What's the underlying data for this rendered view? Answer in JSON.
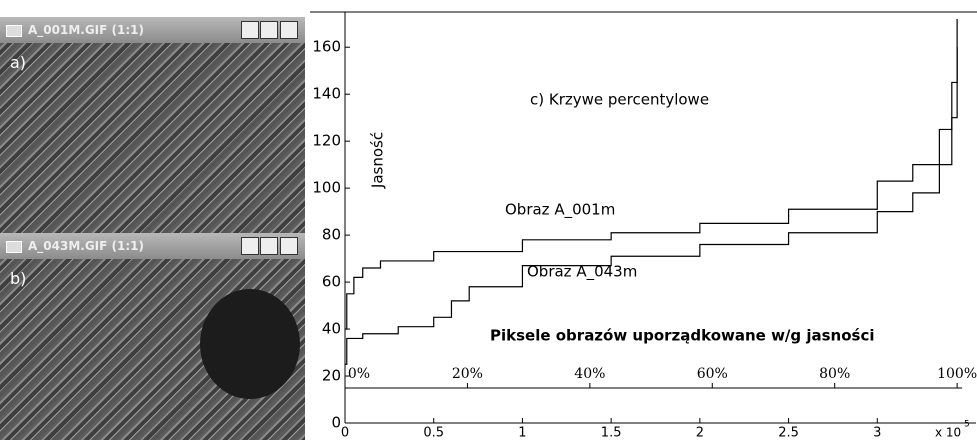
{
  "windows": [
    {
      "title": "A_001M.GIF (1:1)",
      "label": "a)"
    },
    {
      "title": "A_043M.GIF (1:1)",
      "label": "b)"
    }
  ],
  "chart_data": {
    "type": "line",
    "title": "c)  Krzywe percentylowe",
    "y_label": "Jasność",
    "x_label": "Piksele obrazów uporządkowane w/g jasności",
    "x_exponent_base": "x 10",
    "x_exponent": "5",
    "series": [
      {
        "name": "Obraz A_001m",
        "color": "#000000",
        "x": [
          0,
          0.01,
          0.05,
          0.1,
          0.2,
          0.5,
          1,
          1.5,
          2,
          2.5,
          3,
          3.2,
          3.35,
          3.42,
          3.45
        ],
        "values": [
          40,
          55,
          62,
          66,
          69,
          73,
          78,
          81,
          85,
          91,
          103,
          110,
          125,
          145,
          172
        ]
      },
      {
        "name": "Obraz A_043m",
        "color": "#000000",
        "x": [
          0,
          0.01,
          0.1,
          0.3,
          0.5,
          0.6,
          0.7,
          1,
          1.5,
          2,
          2.5,
          3,
          3.2,
          3.35,
          3.42,
          3.45
        ],
        "values": [
          25,
          36,
          38,
          41,
          45,
          52,
          58,
          67,
          71,
          76,
          81,
          90,
          98,
          110,
          130,
          160
        ]
      }
    ],
    "xlim": [
      0,
      3.5
    ],
    "ylim": [
      0,
      175
    ],
    "xticks": [
      0,
      0.5,
      1,
      1.5,
      2,
      2.5,
      3
    ],
    "yticks": [
      0,
      20,
      40,
      60,
      80,
      100,
      120,
      140,
      160
    ],
    "percent_ticks": [
      {
        "value": 0,
        "label": "0%"
      },
      {
        "value": 20,
        "label": "20%"
      },
      {
        "value": 40,
        "label": "40%"
      },
      {
        "value": 60,
        "label": "60%"
      },
      {
        "value": 80,
        "label": "80%"
      },
      {
        "value": 100,
        "label": "100%"
      }
    ]
  }
}
